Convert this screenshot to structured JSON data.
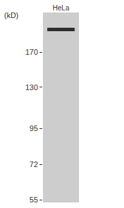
{
  "chart_data": {
    "type": "blot",
    "y_label": "(kD)",
    "categories": [
      "HeLa"
    ],
    "values": [
      202
    ],
    "color": "#2e2e2e",
    "ylim": [
      54,
      230
    ],
    "yticks": [
      55,
      72,
      95,
      130,
      170
    ],
    "log": "y"
  }
}
